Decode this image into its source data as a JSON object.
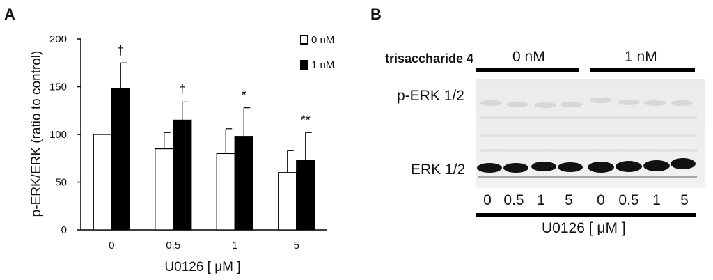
{
  "panels": {
    "a": "A",
    "b": "B"
  },
  "chart_data": {
    "type": "bar",
    "categories": [
      "0",
      "0.5",
      "1",
      "5"
    ],
    "series": [
      {
        "name": "0 nM",
        "values": [
          100,
          85,
          80,
          60
        ],
        "errors": [
          0,
          17,
          26,
          23
        ],
        "color": "#ffffff"
      },
      {
        "name": "1 nM",
        "values": [
          148,
          115,
          98,
          73
        ],
        "errors": [
          27,
          19,
          30,
          29
        ],
        "color": "#000000"
      }
    ],
    "significance": [
      "†",
      "†",
      "*",
      "**"
    ],
    "xlabel": "U0126 [ μM ]",
    "ylabel": "p-ERK/ERK  (ratio to control)",
    "ylim": [
      0,
      200
    ],
    "yticks": [
      "0",
      "50",
      "100",
      "150",
      "200"
    ],
    "grid": false,
    "legend_position": "top-right"
  },
  "blot": {
    "treatment_label": "trisaccharide 4",
    "groups": [
      "0 nM",
      "1 nM"
    ],
    "bands": [
      "p-ERK 1/2",
      "ERK 1/2"
    ],
    "lanes": [
      "0",
      "0.5",
      "1",
      "5",
      "0",
      "0.5",
      "1",
      "5"
    ],
    "xlabel": "U0126 [ μM ]"
  }
}
